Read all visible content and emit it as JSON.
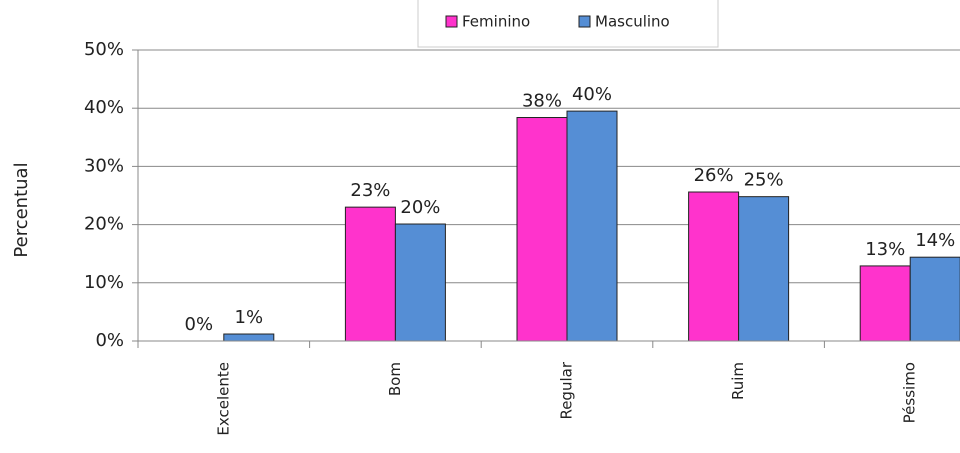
{
  "chart_data": {
    "type": "bar",
    "y_label": "Percentual",
    "categories": [
      "Excelente",
      "Bom",
      "Regular",
      "Ruim",
      "Péssimo"
    ],
    "series": [
      {
        "name": "Feminino",
        "color": "#ff33cc",
        "values": [
          0,
          23,
          38.4,
          25.6,
          12.9
        ],
        "value_labels": [
          "0%",
          "23%",
          "38%",
          "26%",
          "13%"
        ]
      },
      {
        "name": "Masculino",
        "color": "#558ed5",
        "values": [
          1.2,
          20.1,
          39.5,
          24.8,
          14.4
        ],
        "value_labels": [
          "1%",
          "20%",
          "40%",
          "25%",
          "14%"
        ]
      }
    ],
    "ylim": [
      0,
      50
    ],
    "yticks": [
      {
        "value": 0,
        "label": "0%"
      },
      {
        "value": 10,
        "label": "10%"
      },
      {
        "value": 20,
        "label": "20%"
      },
      {
        "value": 30,
        "label": "30%"
      },
      {
        "value": 40,
        "label": "40%"
      },
      {
        "value": 50,
        "label": "50%"
      }
    ],
    "grid": true,
    "legend": "top"
  }
}
